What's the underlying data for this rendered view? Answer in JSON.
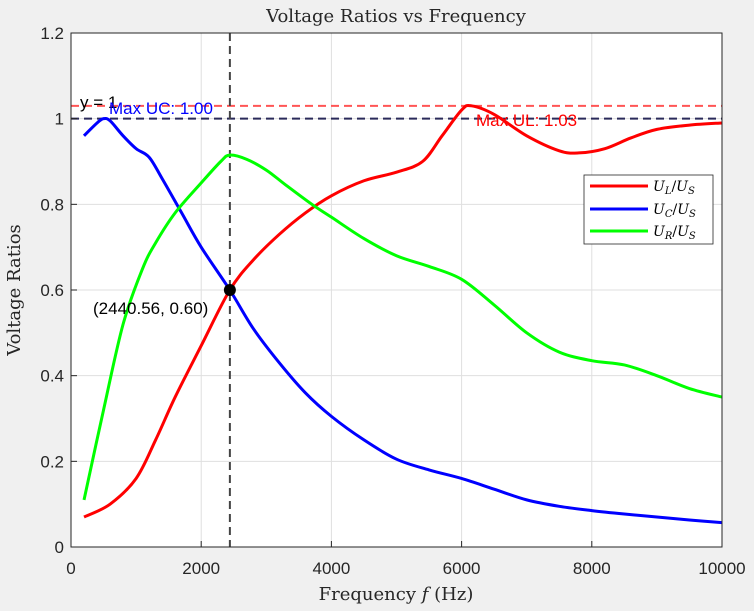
{
  "chart_data": {
    "type": "line",
    "title": "Voltage Ratios vs Frequency",
    "xlabel": "Frequency f (Hz)",
    "ylabel": "Voltage Ratios",
    "xlim": [
      0,
      10000
    ],
    "ylim": [
      0,
      1.2
    ],
    "xticks": [
      0,
      2000,
      4000,
      6000,
      8000,
      10000
    ],
    "yticks": [
      0,
      0.2,
      0.4,
      0.6,
      0.8,
      1,
      1.2
    ],
    "grid": true,
    "legend_position": "right",
    "series": [
      {
        "name": "U_L/U_S",
        "color": "#ff0000",
        "points": [
          [
            200,
            0.07
          ],
          [
            600,
            0.1
          ],
          [
            1000,
            0.16
          ],
          [
            1300,
            0.25
          ],
          [
            1600,
            0.35
          ],
          [
            2000,
            0.47
          ],
          [
            2440,
            0.6
          ],
          [
            2800,
            0.67
          ],
          [
            3200,
            0.73
          ],
          [
            3600,
            0.78
          ],
          [
            4000,
            0.82
          ],
          [
            4500,
            0.855
          ],
          [
            5000,
            0.875
          ],
          [
            5400,
            0.9
          ],
          [
            5700,
            0.96
          ],
          [
            6000,
            1.02
          ],
          [
            6150,
            1.03
          ],
          [
            6500,
            1.01
          ],
          [
            7000,
            0.96
          ],
          [
            7500,
            0.925
          ],
          [
            7800,
            0.92
          ],
          [
            8200,
            0.93
          ],
          [
            8600,
            0.955
          ],
          [
            9000,
            0.975
          ],
          [
            9500,
            0.985
          ],
          [
            10000,
            0.99
          ]
        ]
      },
      {
        "name": "U_C/U_S",
        "color": "#0000ff",
        "points": [
          [
            200,
            0.96
          ],
          [
            400,
            0.99
          ],
          [
            500,
            1.0
          ],
          [
            600,
            0.995
          ],
          [
            800,
            0.96
          ],
          [
            1000,
            0.93
          ],
          [
            1200,
            0.91
          ],
          [
            1400,
            0.86
          ],
          [
            1700,
            0.78
          ],
          [
            2000,
            0.7
          ],
          [
            2440,
            0.6
          ],
          [
            2800,
            0.51
          ],
          [
            3200,
            0.43
          ],
          [
            3600,
            0.36
          ],
          [
            4000,
            0.305
          ],
          [
            4500,
            0.25
          ],
          [
            5000,
            0.205
          ],
          [
            5500,
            0.18
          ],
          [
            6000,
            0.16
          ],
          [
            6500,
            0.135
          ],
          [
            7000,
            0.11
          ],
          [
            7500,
            0.095
          ],
          [
            8000,
            0.085
          ],
          [
            8500,
            0.077
          ],
          [
            9000,
            0.07
          ],
          [
            9500,
            0.063
          ],
          [
            10000,
            0.057
          ]
        ]
      },
      {
        "name": "U_R/U_S",
        "color": "#00ff00",
        "points": [
          [
            200,
            0.11
          ],
          [
            500,
            0.32
          ],
          [
            800,
            0.52
          ],
          [
            1100,
            0.65
          ],
          [
            1300,
            0.71
          ],
          [
            1600,
            0.78
          ],
          [
            2000,
            0.85
          ],
          [
            2300,
            0.9
          ],
          [
            2440,
            0.915
          ],
          [
            2700,
            0.905
          ],
          [
            3000,
            0.88
          ],
          [
            3300,
            0.845
          ],
          [
            3700,
            0.8
          ],
          [
            4000,
            0.77
          ],
          [
            4500,
            0.72
          ],
          [
            5000,
            0.68
          ],
          [
            5500,
            0.655
          ],
          [
            6000,
            0.625
          ],
          [
            6500,
            0.565
          ],
          [
            7000,
            0.5
          ],
          [
            7500,
            0.455
          ],
          [
            8000,
            0.435
          ],
          [
            8500,
            0.425
          ],
          [
            9000,
            0.4
          ],
          [
            9500,
            0.37
          ],
          [
            10000,
            0.35
          ]
        ]
      }
    ],
    "reference_lines": [
      {
        "y": 1.0,
        "color": "#2a2a5a",
        "style": "dashed"
      },
      {
        "y": 1.03,
        "color": "#ff5555",
        "style": "dashed"
      }
    ],
    "vertical_line": {
      "x": 2440.56,
      "color": "#444444",
      "style": "dashed"
    },
    "marker": {
      "x": 2440.56,
      "y": 0.6
    }
  },
  "annotations": {
    "y_equals_one": "y = 1",
    "max_uc": "Max UC: 1.00",
    "max_ul": "Max UL: 1.03",
    "intersection": "(2440.56, 0.60)"
  },
  "legend": {
    "ul": {
      "base": "U",
      "sub": "L",
      "slash": "/",
      "den": "U",
      "den_sub": "S"
    },
    "uc": {
      "base": "U",
      "sub": "C",
      "slash": "/",
      "den": "U",
      "den_sub": "S"
    },
    "ur": {
      "base": "U",
      "sub": "R",
      "slash": "/",
      "den": "U",
      "den_sub": "S"
    }
  },
  "axis_text": {
    "title": "Voltage Ratios vs Frequency",
    "xlabel_prefix": "Frequency ",
    "xlabel_var": "f",
    "xlabel_suffix": " (Hz)",
    "ylabel": "Voltage Ratios"
  }
}
